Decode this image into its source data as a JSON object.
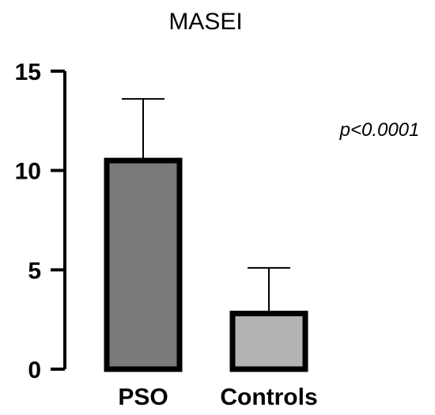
{
  "chart_data": {
    "type": "bar",
    "title": "MASEI",
    "xlabel": "",
    "ylabel": "",
    "categories": [
      "PSO",
      "Controls"
    ],
    "values": [
      10.5,
      2.8
    ],
    "error_upper": [
      13.6,
      5.1
    ],
    "ylim": [
      0,
      15
    ],
    "yticks": [
      "0",
      "5",
      "10",
      "15"
    ],
    "bar_colors": [
      "#7a7a7a",
      "#b3b3b3"
    ],
    "annotation": "p<0.0001",
    "grid": false,
    "legend": "none"
  }
}
